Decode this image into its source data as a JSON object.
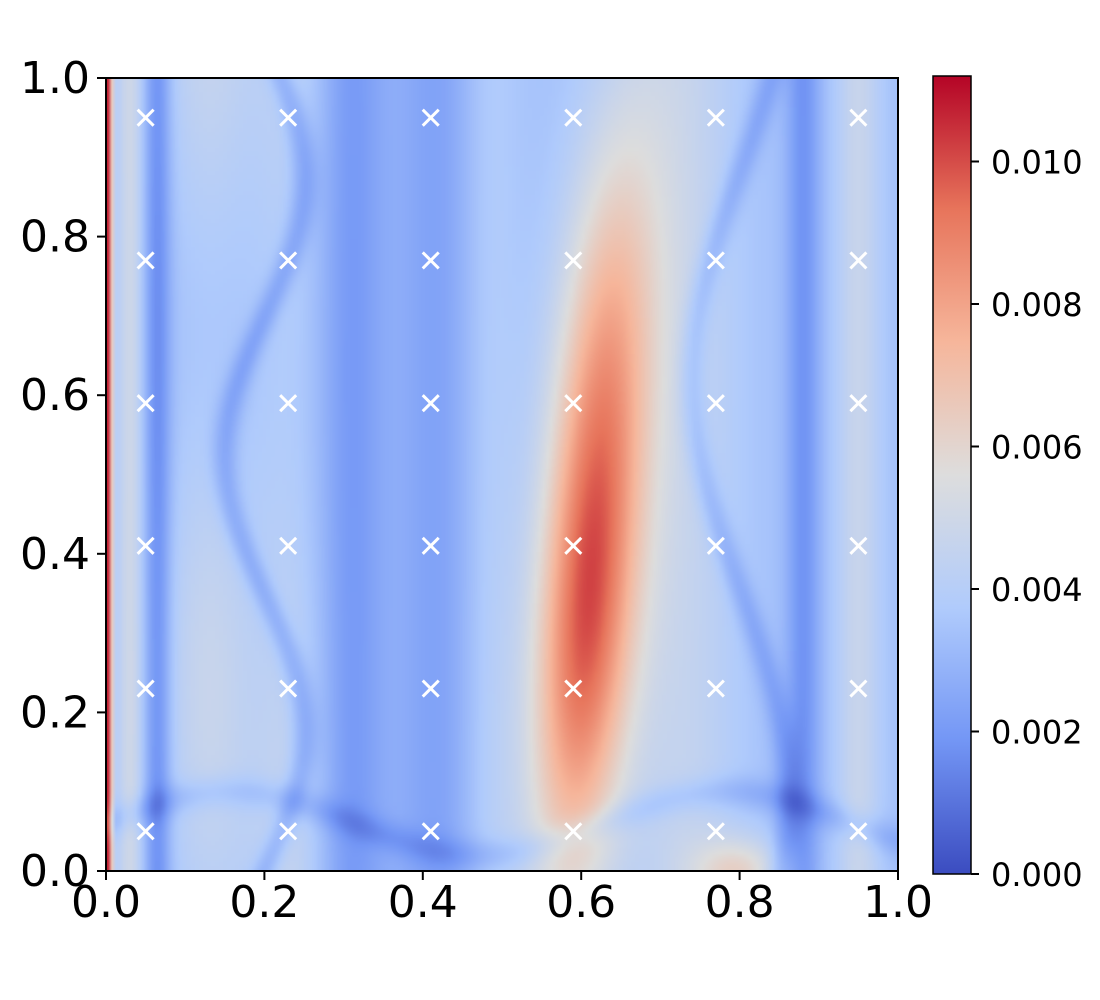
{
  "chart_data": {
    "type": "heatmap",
    "xlim": [
      0.0,
      1.0
    ],
    "ylim": [
      0.0,
      1.0
    ],
    "x_ticks": [
      0.0,
      0.2,
      0.4,
      0.6,
      0.8,
      1.0
    ],
    "y_ticks": [
      0.0,
      0.2,
      0.4,
      0.6,
      0.8,
      1.0
    ],
    "x_tick_labels": [
      "0.0",
      "0.2",
      "0.4",
      "0.6",
      "0.8",
      "1.0"
    ],
    "y_tick_labels": [
      "0.0",
      "0.2",
      "0.4",
      "0.6",
      "0.8",
      "1.0"
    ],
    "colorbar": {
      "range": [
        0.0,
        0.0112
      ],
      "ticks": [
        0.0,
        0.002,
        0.004,
        0.006,
        0.008,
        0.01
      ],
      "tick_labels": [
        "0.000",
        "0.002",
        "0.004",
        "0.006",
        "0.008",
        "0.010"
      ],
      "colormap": "coolwarm"
    },
    "colormap_stops": [
      "#3b4cc0",
      "#7396f5",
      "#b0cbfc",
      "#dddddd",
      "#f6b69b",
      "#e7745b",
      "#b40426"
    ],
    "marker_color": "#ffffff",
    "markers": {
      "symbol": "x",
      "x": [
        0.05,
        0.23,
        0.41,
        0.59,
        0.77,
        0.95
      ],
      "y": [
        0.05,
        0.23,
        0.41,
        0.59,
        0.77,
        0.95
      ]
    },
    "grid": false,
    "legend": "none"
  }
}
